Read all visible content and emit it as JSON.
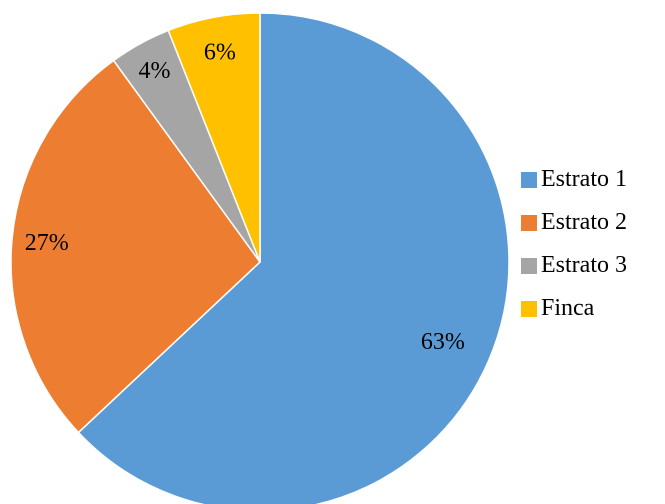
{
  "chart_data": {
    "type": "pie",
    "title": "",
    "categories": [
      "Estrato 1",
      "Estrato 2",
      "Estrato 3",
      "Finca"
    ],
    "values": [
      63,
      27,
      4,
      6
    ],
    "data_labels": [
      "63%",
      "27%",
      "4%",
      "6%"
    ],
    "colors": [
      "#5B9BD5",
      "#ED7D31",
      "#A5A5A5",
      "#FFC000"
    ],
    "start": "top",
    "direction": "clockwise",
    "legend_position": "right"
  }
}
